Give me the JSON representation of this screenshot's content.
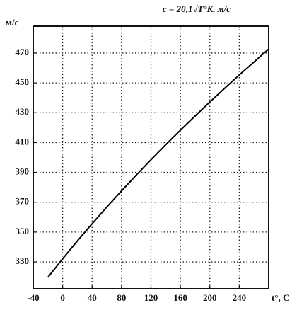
{
  "chart_data": {
    "type": "line",
    "title": "c = 20,1√T°K, м/с",
    "y_label": "м/с",
    "x_label": "t°, C",
    "x": [
      -20,
      0,
      20,
      40,
      60,
      80,
      100,
      120,
      140,
      160,
      180,
      200,
      220,
      240,
      260,
      280
    ],
    "series": [
      {
        "name": "c",
        "color": "#000000",
        "values": [
          319.7,
          332.1,
          344.1,
          355.6,
          366.8,
          377.6,
          388.2,
          398.5,
          408.5,
          418.3,
          427.8,
          437.2,
          446.3,
          455.3,
          464.0,
          472.7
        ]
      }
    ],
    "xlim": [
      -40,
      280
    ],
    "xticks": [
      -40,
      0,
      40,
      80,
      120,
      160,
      200,
      240
    ],
    "ylim": [
      312,
      488
    ],
    "yticks": [
      330,
      350,
      370,
      390,
      410,
      430,
      450,
      470
    ],
    "grid": true
  }
}
